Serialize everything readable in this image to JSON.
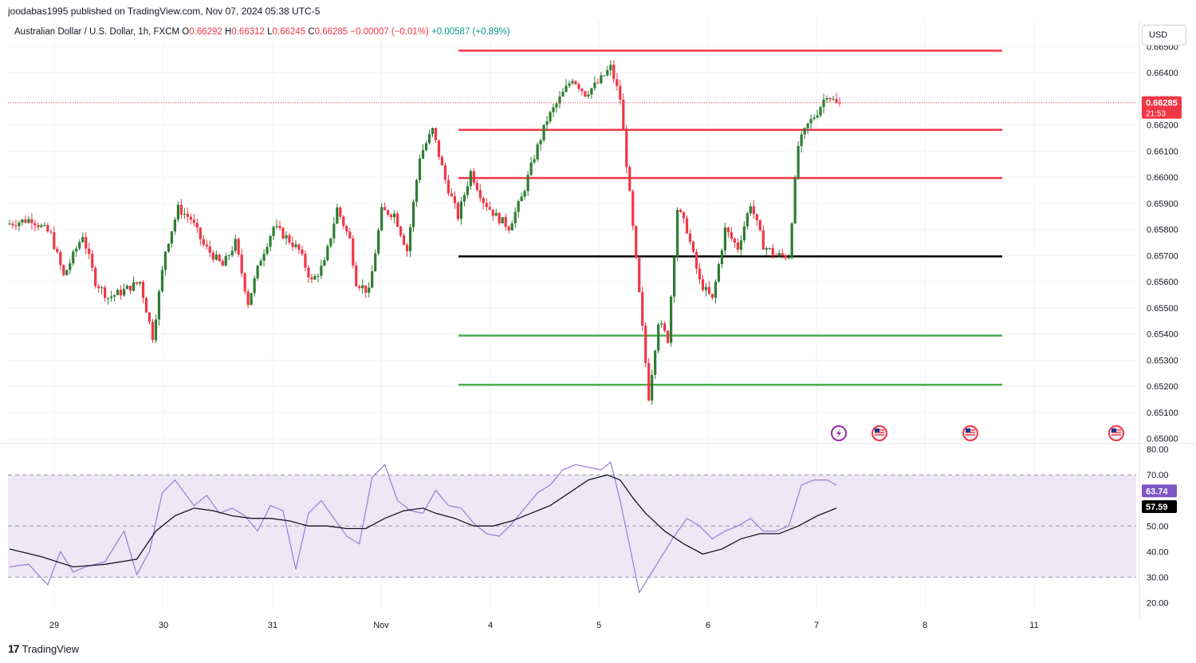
{
  "header": {
    "published_by": "joodabas1995 published on TradingView.com, Nov 07, 2024 05:38 UTC-5",
    "symbol": "Australian Dollar / U.S. Dollar, 1h, FXCM",
    "o_label": "O",
    "o_value": "0.66292",
    "h_label": "H",
    "h_value": "0.66312",
    "l_label": "L",
    "l_value": "0.66245",
    "c_label": "C",
    "c_value": "0.66285",
    "change": "−0.00007 (−0.01%)",
    "change2": "+0.00587 (+0.89%)"
  },
  "currency_button": "USD",
  "footer": {
    "brand": "TradingView",
    "logo": "17"
  },
  "colors": {
    "up": "#089981",
    "down": "#f23645",
    "candle_up": "#2e7d32",
    "rsi": "#7e57c2",
    "rsi_band": "#ede7f6",
    "resistance": "#f23645",
    "support": "#4caf50",
    "pivot": "#000000"
  },
  "chart_data": [
    {
      "type": "candlestick",
      "y_ticks": [
        "0.66500",
        "0.66400",
        "0.66300",
        "0.66200",
        "0.66100",
        "0.66000",
        "0.65900",
        "0.65800",
        "0.65700",
        "0.65600",
        "0.65500",
        "0.65400",
        "0.65300",
        "0.65200",
        "0.65100",
        "0.65000"
      ],
      "ylim": [
        0.6499,
        0.6651
      ],
      "x_ticks": [
        "29",
        "30",
        "31",
        "Nov",
        "4",
        "5",
        "6",
        "7",
        "8",
        "11"
      ],
      "last_price_label": "0.66285",
      "countdown_label": "21:53",
      "last_price": 0.66285,
      "horizontal_lines": [
        {
          "level": 0.66484,
          "kind": "resistance"
        },
        {
          "level": 0.66181,
          "kind": "resistance"
        },
        {
          "level": 0.65997,
          "kind": "resistance"
        },
        {
          "level": 0.65697,
          "kind": "pivot"
        },
        {
          "level": 0.65394,
          "kind": "support"
        },
        {
          "level": 0.65206,
          "kind": "support"
        }
      ],
      "events": [
        "lightning-icon",
        "us-flag-icon",
        "us-flag-icon",
        "au-flag-icon"
      ],
      "path_points": [
        [
          0,
          0.6582
        ],
        [
          8,
          0.6584
        ],
        [
          14,
          0.6578
        ],
        [
          18,
          0.6562
        ],
        [
          24,
          0.6578
        ],
        [
          28,
          0.656
        ],
        [
          32,
          0.6554
        ],
        [
          36,
          0.6556
        ],
        [
          42,
          0.656
        ],
        [
          46,
          0.6539
        ],
        [
          50,
          0.6572
        ],
        [
          54,
          0.6588
        ],
        [
          58,
          0.6584
        ],
        [
          62,
          0.6574
        ],
        [
          68,
          0.6566
        ],
        [
          72,
          0.6575
        ],
        [
          76,
          0.6552
        ],
        [
          80,
          0.6569
        ],
        [
          84,
          0.6581
        ],
        [
          88,
          0.6577
        ],
        [
          92,
          0.6572
        ],
        [
          96,
          0.656
        ],
        [
          100,
          0.6567
        ],
        [
          104,
          0.6588
        ],
        [
          108,
          0.6576
        ],
        [
          110,
          0.656
        ],
        [
          114,
          0.6556
        ],
        [
          118,
          0.6587
        ],
        [
          122,
          0.6586
        ],
        [
          126,
          0.6572
        ],
        [
          130,
          0.6608
        ],
        [
          134,
          0.6618
        ],
        [
          138,
          0.6599
        ],
        [
          142,
          0.6585
        ],
        [
          146,
          0.6602
        ],
        [
          150,
          0.6591
        ],
        [
          154,
          0.6585
        ],
        [
          158,
          0.6581
        ],
        [
          162,
          0.6592
        ],
        [
          166,
          0.6608
        ],
        [
          170,
          0.6622
        ],
        [
          174,
          0.663
        ],
        [
          178,
          0.6638
        ],
        [
          182,
          0.6632
        ],
        [
          186,
          0.6636
        ],
        [
          190,
          0.6642
        ],
        [
          193,
          0.663
        ],
        [
          196,
          0.6593
        ],
        [
          199,
          0.6555
        ],
        [
          202,
          0.6516
        ],
        [
          205,
          0.6545
        ],
        [
          208,
          0.6538
        ],
        [
          211,
          0.6588
        ],
        [
          214,
          0.658
        ],
        [
          218,
          0.656
        ],
        [
          222,
          0.6553
        ],
        [
          226,
          0.658
        ],
        [
          230,
          0.6573
        ],
        [
          234,
          0.659
        ],
        [
          238,
          0.6574
        ],
        [
          242,
          0.657
        ],
        [
          246,
          0.657
        ],
        [
          249,
          0.6612
        ],
        [
          252,
          0.662
        ],
        [
          255,
          0.6625
        ],
        [
          258,
          0.6632
        ],
        [
          261,
          0.6628
        ]
      ],
      "n_bars": 262
    },
    {
      "type": "line",
      "name": "RSI",
      "y_ticks": [
        "80.00",
        "70.00",
        "50.00",
        "40.00",
        "30.00",
        "20.00"
      ],
      "ylim": [
        17,
        81
      ],
      "band": [
        30,
        70
      ],
      "midline": 50,
      "rsi_label": "63.74",
      "ma_label": "57.59",
      "rsi_points": [
        [
          0,
          34
        ],
        [
          6,
          35
        ],
        [
          12,
          27
        ],
        [
          16,
          40
        ],
        [
          20,
          32
        ],
        [
          24,
          34
        ],
        [
          30,
          36
        ],
        [
          36,
          48
        ],
        [
          40,
          31
        ],
        [
          44,
          40
        ],
        [
          48,
          63
        ],
        [
          52,
          68
        ],
        [
          58,
          58
        ],
        [
          62,
          62
        ],
        [
          66,
          55
        ],
        [
          70,
          57
        ],
        [
          74,
          54
        ],
        [
          78,
          48
        ],
        [
          82,
          58
        ],
        [
          86,
          56
        ],
        [
          90,
          33
        ],
        [
          94,
          55
        ],
        [
          98,
          60
        ],
        [
          102,
          53
        ],
        [
          106,
          46
        ],
        [
          110,
          43
        ],
        [
          114,
          69
        ],
        [
          118,
          74
        ],
        [
          122,
          60
        ],
        [
          126,
          56
        ],
        [
          130,
          55
        ],
        [
          134,
          64
        ],
        [
          138,
          58
        ],
        [
          142,
          57
        ],
        [
          146,
          51
        ],
        [
          150,
          47
        ],
        [
          154,
          46
        ],
        [
          158,
          51
        ],
        [
          162,
          57
        ],
        [
          166,
          63
        ],
        [
          170,
          66
        ],
        [
          174,
          72
        ],
        [
          178,
          74
        ],
        [
          182,
          73
        ],
        [
          186,
          72
        ],
        [
          189,
          75
        ],
        [
          192,
          60
        ],
        [
          195,
          42
        ],
        [
          198,
          24
        ],
        [
          201,
          30
        ],
        [
          205,
          38
        ],
        [
          209,
          46
        ],
        [
          213,
          53
        ],
        [
          217,
          50
        ],
        [
          221,
          45
        ],
        [
          225,
          48
        ],
        [
          229,
          50
        ],
        [
          233,
          53
        ],
        [
          237,
          48
        ],
        [
          241,
          48
        ],
        [
          245,
          50
        ],
        [
          249,
          66
        ],
        [
          253,
          68
        ],
        [
          257,
          68
        ],
        [
          260,
          66
        ]
      ],
      "ma_points": [
        [
          0,
          41
        ],
        [
          10,
          38
        ],
        [
          20,
          34
        ],
        [
          30,
          35
        ],
        [
          40,
          37
        ],
        [
          46,
          48
        ],
        [
          52,
          54
        ],
        [
          58,
          57
        ],
        [
          64,
          56
        ],
        [
          70,
          54
        ],
        [
          76,
          53
        ],
        [
          82,
          53
        ],
        [
          88,
          52
        ],
        [
          94,
          50
        ],
        [
          100,
          50
        ],
        [
          106,
          49
        ],
        [
          112,
          49
        ],
        [
          118,
          53
        ],
        [
          124,
          56
        ],
        [
          130,
          57
        ],
        [
          134,
          55
        ],
        [
          140,
          53
        ],
        [
          146,
          50
        ],
        [
          152,
          50
        ],
        [
          158,
          52
        ],
        [
          164,
          55
        ],
        [
          170,
          58
        ],
        [
          176,
          63
        ],
        [
          182,
          68
        ],
        [
          188,
          70
        ],
        [
          192,
          68
        ],
        [
          196,
          61
        ],
        [
          200,
          55
        ],
        [
          206,
          48
        ],
        [
          212,
          43
        ],
        [
          218,
          39
        ],
        [
          224,
          41
        ],
        [
          230,
          45
        ],
        [
          236,
          47
        ],
        [
          242,
          47
        ],
        [
          248,
          50
        ],
        [
          254,
          54
        ],
        [
          260,
          57
        ]
      ]
    }
  ]
}
